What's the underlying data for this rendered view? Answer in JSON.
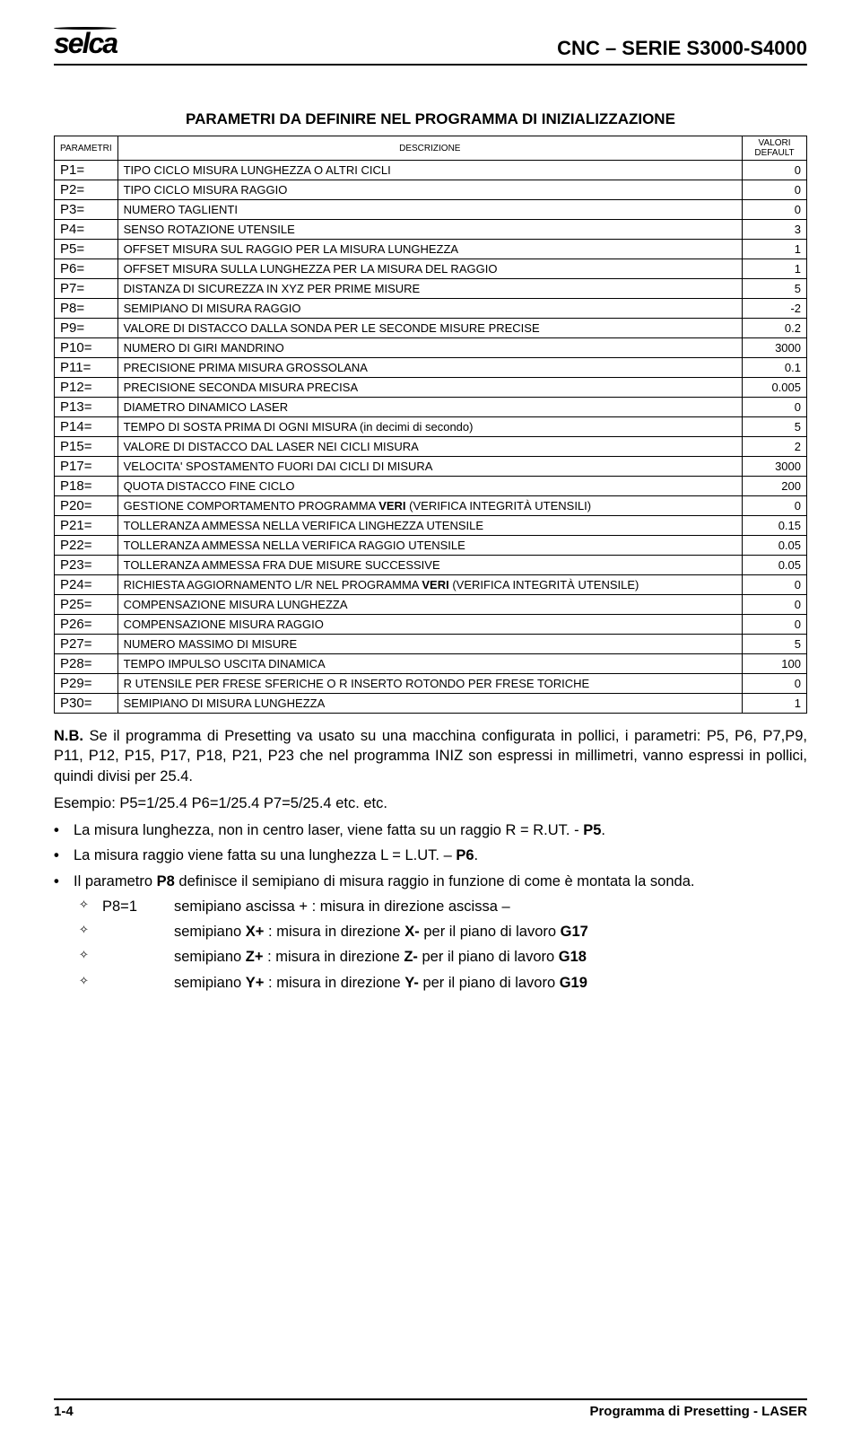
{
  "header": {
    "logo": "selca",
    "doc_title": "CNC – SERIE S3000-S4000"
  },
  "section_title": "PARAMETRI DA DEFINIRE NEL PROGRAMMA DI INIZIALIZZAZIONE",
  "table": {
    "head_param": "PARAMETRI",
    "head_desc": "DESCRIZIONE",
    "head_val": "VALORI DEFAULT",
    "rows": [
      {
        "p": "P1=",
        "d": "TIPO CICLO MISURA LUNGHEZZA O ALTRI CICLI",
        "v": "0"
      },
      {
        "p": "P2=",
        "d": "TIPO CICLO MISURA RAGGIO",
        "v": "0"
      },
      {
        "p": "P3=",
        "d": "NUMERO TAGLIENTI",
        "v": "0"
      },
      {
        "p": "P4=",
        "d": "SENSO ROTAZIONE UTENSILE",
        "v": "3"
      },
      {
        "p": "P5=",
        "d": "OFFSET MISURA SUL RAGGIO PER LA MISURA LUNGHEZZA",
        "v": "1"
      },
      {
        "p": "P6=",
        "d": "OFFSET MISURA SULLA LUNGHEZZA PER LA MISURA DEL RAGGIO",
        "v": "1"
      },
      {
        "p": "P7=",
        "d": "DISTANZA DI SICUREZZA IN XYZ PER PRIME MISURE",
        "v": "5"
      },
      {
        "p": "P8=",
        "d": "SEMIPIANO DI MISURA RAGGIO",
        "v": "-2"
      },
      {
        "p": "P9=",
        "d": "VALORE DI DISTACCO DALLA SONDA PER LE SECONDE MISURE PRECISE",
        "v": "0.2"
      },
      {
        "p": "P10=",
        "d": "NUMERO DI GIRI MANDRINO",
        "v": "3000"
      },
      {
        "p": "P11=",
        "d": "PRECISIONE PRIMA MISURA GROSSOLANA",
        "v": "0.1"
      },
      {
        "p": "P12=",
        "d": "PRECISIONE SECONDA MISURA PRECISA",
        "v": "0.005"
      },
      {
        "p": "P13=",
        "d": "DIAMETRO DINAMICO LASER",
        "v": "0"
      },
      {
        "p": "P14=",
        "d": "TEMPO DI SOSTA PRIMA DI OGNI MISURA (in decimi di secondo)",
        "v": "5"
      },
      {
        "p": "P15=",
        "d": "VALORE DI DISTACCO DAL LASER NEI CICLI MISURA",
        "v": "2"
      },
      {
        "p": "P17=",
        "d": "VELOCITA' SPOSTAMENTO FUORI DAI CICLI DI MISURA",
        "v": "3000"
      },
      {
        "p": "P18=",
        "d": "QUOTA DISTACCO FINE CICLO",
        "v": "200"
      },
      {
        "p": "P20=",
        "d": "GESTIONE COMPORTAMENTO PROGRAMMA <b>VERI</b> (VERIFICA INTEGRITÀ UTENSILI)",
        "v": "0"
      },
      {
        "p": "P21=",
        "d": "TOLLERANZA AMMESSA NELLA VERIFICA LINGHEZZA UTENSILE",
        "v": "0.15"
      },
      {
        "p": "P22=",
        "d": "TOLLERANZA AMMESSA NELLA VERIFICA RAGGIO UTENSILE",
        "v": "0.05"
      },
      {
        "p": "P23=",
        "d": "TOLLERANZA AMMESSA FRA DUE MISURE SUCCESSIVE",
        "v": "0.05"
      },
      {
        "p": "P24=",
        "d": "RICHIESTA AGGIORNAMENTO L/R NEL PROGRAMMA <b>VERI</b> (VERIFICA INTEGRITÀ UTENSILE)",
        "v": "0"
      },
      {
        "p": "P25=",
        "d": "COMPENSAZIONE MISURA LUNGHEZZA",
        "v": "0"
      },
      {
        "p": "P26=",
        "d": "COMPENSAZIONE MISURA RAGGIO",
        "v": "0"
      },
      {
        "p": "P27=",
        "d": "NUMERO MASSIMO DI MISURE",
        "v": "5"
      },
      {
        "p": "P28=",
        "d": "TEMPO IMPULSO USCITA DINAMICA",
        "v": "100"
      },
      {
        "p": "P29=",
        "d": "R UTENSILE PER FRESE SFERICHE O  R INSERTO ROTONDO PER FRESE TORICHE",
        "v": "0"
      },
      {
        "p": "P30=",
        "d": "SEMIPIANO DI MISURA LUNGHEZZA",
        "v": "1"
      }
    ]
  },
  "note": {
    "nb_label": "N.B.",
    "nb_text": " Se il programma di Presetting va usato su una macchina configurata in pollici, i parametri: P5, P6, P7,P9, P11, P12, P15, P17, P18, P21, P23 che nel programma INIZ son espressi in millimetri, vanno espressi in pollici, quindi divisi per 25.4.",
    "example": "Esempio: P5=1/25.4   P6=1/25.4   P7=5/25.4   etc. etc."
  },
  "bullets": [
    "La misura lunghezza, non in centro laser, viene fatta su un raggio R = R.UT. - <b>P5</b>.",
    "La misura raggio viene fatta su una lunghezza L = L.UT. – <b>P6</b>.",
    "Il parametro <b>P8</b> definisce il semipiano di misura raggio in funzione di come è montata la sonda."
  ],
  "p8_items": [
    {
      "p8": "P8=1",
      "txt": "semipiano ascissa + : misura in direzione ascissa –"
    },
    {
      "p8": "",
      "txt": "semipiano <b>X+</b> : misura in direzione <b>X-</b> per il piano di lavoro <b>G17</b>"
    },
    {
      "p8": "",
      "txt": "semipiano <b>Z+</b> : misura in direzione <b>Z-</b> per il piano di lavoro <b>G18</b>"
    },
    {
      "p8": "",
      "txt": "semipiano <b>Y+</b> : misura in direzione <b>Y-</b> per il piano di lavoro <b>G19</b>"
    }
  ],
  "footer": {
    "left": "1-4",
    "right": "Programma di Presetting - LASER"
  }
}
